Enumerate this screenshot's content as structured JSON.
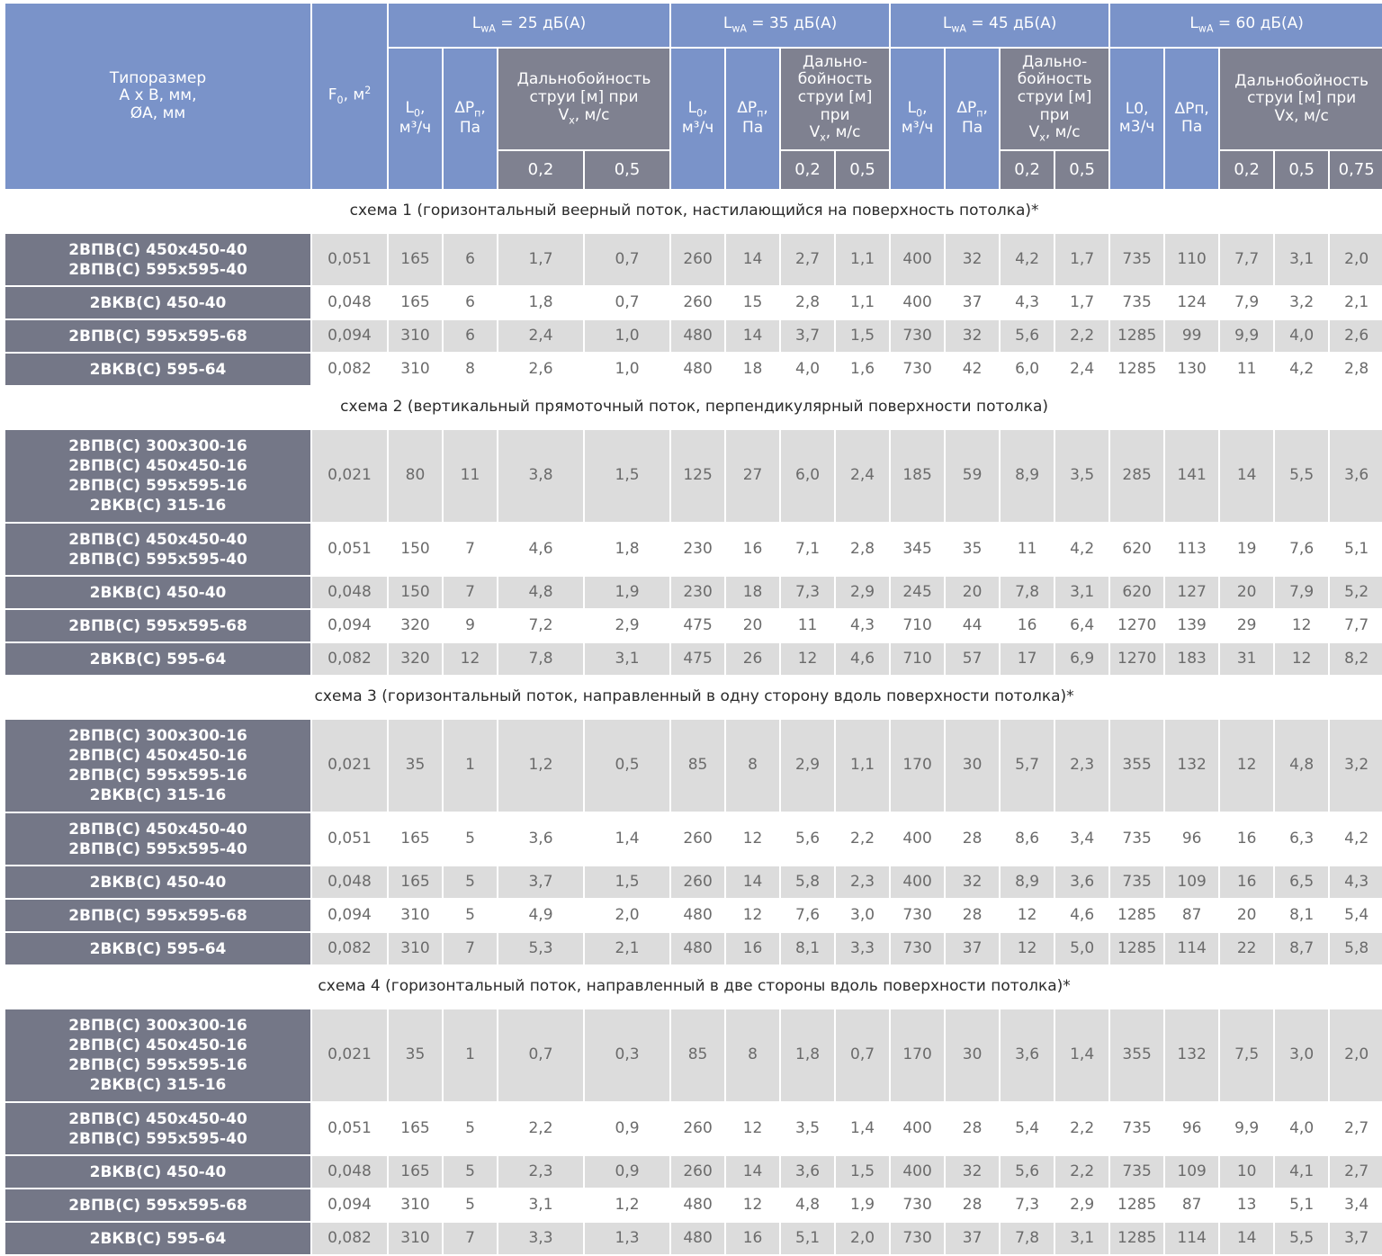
{
  "header": {
    "size_col": "Типоразмер\nА х В, мм,\nØA, мм",
    "f0_col": "F₀, м²",
    "groups": [
      {
        "label": "L<sub>wA</sub> = 25 дБ(А)",
        "l0": "L<sub>0</sub>,<br>м³/ч",
        "dp": "ΔP<sub>п</sub>,<br>Па",
        "range": "Дальнобойность<br>струи [м] при<br>V<sub>x</sub>, м/с",
        "vx": [
          "0,2",
          "0,5"
        ]
      },
      {
        "label": "L<sub>wA</sub> = 35 дБ(А)",
        "l0": "L<sub>0</sub>,<br>м³/ч",
        "dp": "ΔP<sub>п</sub>,<br>Па",
        "range": "Дально-<br>бойность<br>струи [м]<br>при<br>V<sub>x</sub>, м/с",
        "vx": [
          "0,2",
          "0,5"
        ]
      },
      {
        "label": "L<sub>wA</sub> = 45 дБ(А)",
        "l0": "L<sub>0</sub>,<br>м³/ч",
        "dp": "ΔP<sub>п</sub>,<br>Па",
        "range": "Дально-<br>бойность<br>струи [м]<br>при<br>V<sub>x</sub>, м/с",
        "vx": [
          "0,2",
          "0,5"
        ]
      },
      {
        "label": "L<sub>wA</sub> = 60 дБ(А)",
        "l0": "L0,<br>м3/ч",
        "dp": "ΔPп,<br>Па",
        "range": "Дальнобойность<br>струи [м] при<br>Vx, м/с",
        "vx": [
          "0,2",
          "0,5",
          "0,75"
        ]
      }
    ]
  },
  "sections": [
    {
      "title": "схема 1 (горизонтальный веерный поток, настилающийся на поверхность потолка)*",
      "rows": [
        {
          "name": [
            "2ВПВ(С) 450х450-40",
            "2ВПВ(С) 595х595-40"
          ],
          "v": [
            "0,051",
            "165",
            "6",
            "1,7",
            "0,7",
            "260",
            "14",
            "2,7",
            "1,1",
            "400",
            "32",
            "4,2",
            "1,7",
            "735",
            "110",
            "7,7",
            "3,1",
            "2,0"
          ]
        },
        {
          "name": [
            "2ВКВ(С) 450-40"
          ],
          "v": [
            "0,048",
            "165",
            "6",
            "1,8",
            "0,7",
            "260",
            "15",
            "2,8",
            "1,1",
            "400",
            "37",
            "4,3",
            "1,7",
            "735",
            "124",
            "7,9",
            "3,2",
            "2,1"
          ]
        },
        {
          "name": [
            "2ВПВ(С) 595х595-68"
          ],
          "v": [
            "0,094",
            "310",
            "6",
            "2,4",
            "1,0",
            "480",
            "14",
            "3,7",
            "1,5",
            "730",
            "32",
            "5,6",
            "2,2",
            "1285",
            "99",
            "9,9",
            "4,0",
            "2,6"
          ]
        },
        {
          "name": [
            "2ВКВ(С) 595-64"
          ],
          "v": [
            "0,082",
            "310",
            "8",
            "2,6",
            "1,0",
            "480",
            "18",
            "4,0",
            "1,6",
            "730",
            "42",
            "6,0",
            "2,4",
            "1285",
            "130",
            "11",
            "4,2",
            "2,8"
          ]
        }
      ]
    },
    {
      "title": "схема 2 (вертикальный прямоточный поток, перпендикулярный поверхности потолка)",
      "rows": [
        {
          "name": [
            "2ВПВ(С) 300х300-16",
            "2ВПВ(С) 450х450-16",
            "2ВПВ(С) 595х595-16",
            "2ВКВ(С) 315-16"
          ],
          "v": [
            "0,021",
            "80",
            "11",
            "3,8",
            "1,5",
            "125",
            "27",
            "6,0",
            "2,4",
            "185",
            "59",
            "8,9",
            "3,5",
            "285",
            "141",
            "14",
            "5,5",
            "3,6"
          ]
        },
        {
          "name": [
            "2ВПВ(С) 450х450-40",
            "2ВПВ(С) 595х595-40"
          ],
          "v": [
            "0,051",
            "150",
            "7",
            "4,6",
            "1,8",
            "230",
            "16",
            "7,1",
            "2,8",
            "345",
            "35",
            "11",
            "4,2",
            "620",
            "113",
            "19",
            "7,6",
            "5,1"
          ]
        },
        {
          "name": [
            "2ВКВ(С) 450-40"
          ],
          "v": [
            "0,048",
            "150",
            "7",
            "4,8",
            "1,9",
            "230",
            "18",
            "7,3",
            "2,9",
            "245",
            "20",
            "7,8",
            "3,1",
            "620",
            "127",
            "20",
            "7,9",
            "5,2"
          ]
        },
        {
          "name": [
            "2ВПВ(С) 595х595-68"
          ],
          "v": [
            "0,094",
            "320",
            "9",
            "7,2",
            "2,9",
            "475",
            "20",
            "11",
            "4,3",
            "710",
            "44",
            "16",
            "6,4",
            "1270",
            "139",
            "29",
            "12",
            "7,7"
          ]
        },
        {
          "name": [
            "2ВКВ(С) 595-64"
          ],
          "v": [
            "0,082",
            "320",
            "12",
            "7,8",
            "3,1",
            "475",
            "26",
            "12",
            "4,6",
            "710",
            "57",
            "17",
            "6,9",
            "1270",
            "183",
            "31",
            "12",
            "8,2"
          ]
        }
      ]
    },
    {
      "title": "схема 3 (горизонтальный поток, направленный в одну сторону вдоль поверхности потолка)*",
      "rows": [
        {
          "name": [
            "2ВПВ(С) 300х300-16",
            "2ВПВ(С) 450х450-16",
            "2ВПВ(С) 595х595-16",
            "2ВКВ(С) 315-16"
          ],
          "v": [
            "0,021",
            "35",
            "1",
            "1,2",
            "0,5",
            "85",
            "8",
            "2,9",
            "1,1",
            "170",
            "30",
            "5,7",
            "2,3",
            "355",
            "132",
            "12",
            "4,8",
            "3,2"
          ]
        },
        {
          "name": [
            "2ВПВ(С) 450х450-40",
            "2ВПВ(С) 595х595-40"
          ],
          "v": [
            "0,051",
            "165",
            "5",
            "3,6",
            "1,4",
            "260",
            "12",
            "5,6",
            "2,2",
            "400",
            "28",
            "8,6",
            "3,4",
            "735",
            "96",
            "16",
            "6,3",
            "4,2"
          ]
        },
        {
          "name": [
            "2ВКВ(С) 450-40"
          ],
          "v": [
            "0,048",
            "165",
            "5",
            "3,7",
            "1,5",
            "260",
            "14",
            "5,8",
            "2,3",
            "400",
            "32",
            "8,9",
            "3,6",
            "735",
            "109",
            "16",
            "6,5",
            "4,3"
          ]
        },
        {
          "name": [
            "2ВПВ(С) 595х595-68"
          ],
          "v": [
            "0,094",
            "310",
            "5",
            "4,9",
            "2,0",
            "480",
            "12",
            "7,6",
            "3,0",
            "730",
            "28",
            "12",
            "4,6",
            "1285",
            "87",
            "20",
            "8,1",
            "5,4"
          ]
        },
        {
          "name": [
            "2ВКВ(С) 595-64"
          ],
          "v": [
            "0,082",
            "310",
            "7",
            "5,3",
            "2,1",
            "480",
            "16",
            "8,1",
            "3,3",
            "730",
            "37",
            "12",
            "5,0",
            "1285",
            "114",
            "22",
            "8,7",
            "5,8"
          ]
        }
      ]
    },
    {
      "title": "схема 4 (горизонтальный поток, направленный в две стороны вдоль поверхности потолка)*",
      "rows": [
        {
          "name": [
            "2ВПВ(С) 300х300-16",
            "2ВПВ(С) 450х450-16",
            "2ВПВ(С) 595х595-16",
            "2ВКВ(С) 315-16"
          ],
          "v": [
            "0,021",
            "35",
            "1",
            "0,7",
            "0,3",
            "85",
            "8",
            "1,8",
            "0,7",
            "170",
            "30",
            "3,6",
            "1,4",
            "355",
            "132",
            "7,5",
            "3,0",
            "2,0"
          ]
        },
        {
          "name": [
            "2ВПВ(С) 450х450-40",
            "2ВПВ(С) 595х595-40"
          ],
          "v": [
            "0,051",
            "165",
            "5",
            "2,2",
            "0,9",
            "260",
            "12",
            "3,5",
            "1,4",
            "400",
            "28",
            "5,4",
            "2,2",
            "735",
            "96",
            "9,9",
            "4,0",
            "2,7"
          ]
        },
        {
          "name": [
            "2ВКВ(С) 450-40"
          ],
          "v": [
            "0,048",
            "165",
            "5",
            "2,3",
            "0,9",
            "260",
            "14",
            "3,6",
            "1,5",
            "400",
            "32",
            "5,6",
            "2,2",
            "735",
            "109",
            "10",
            "4,1",
            "2,7"
          ]
        },
        {
          "name": [
            "2ВПВ(С) 595х595-68"
          ],
          "v": [
            "0,094",
            "310",
            "5",
            "3,1",
            "1,2",
            "480",
            "12",
            "4,8",
            "1,9",
            "730",
            "28",
            "7,3",
            "2,9",
            "1285",
            "87",
            "13",
            "5,1",
            "3,4"
          ]
        },
        {
          "name": [
            "2ВКВ(С) 595-64"
          ],
          "v": [
            "0,082",
            "310",
            "7",
            "3,3",
            "1,3",
            "480",
            "16",
            "5,1",
            "2,0",
            "730",
            "37",
            "7,8",
            "3,1",
            "1285",
            "114",
            "14",
            "5,5",
            "3,7"
          ]
        }
      ]
    }
  ]
}
